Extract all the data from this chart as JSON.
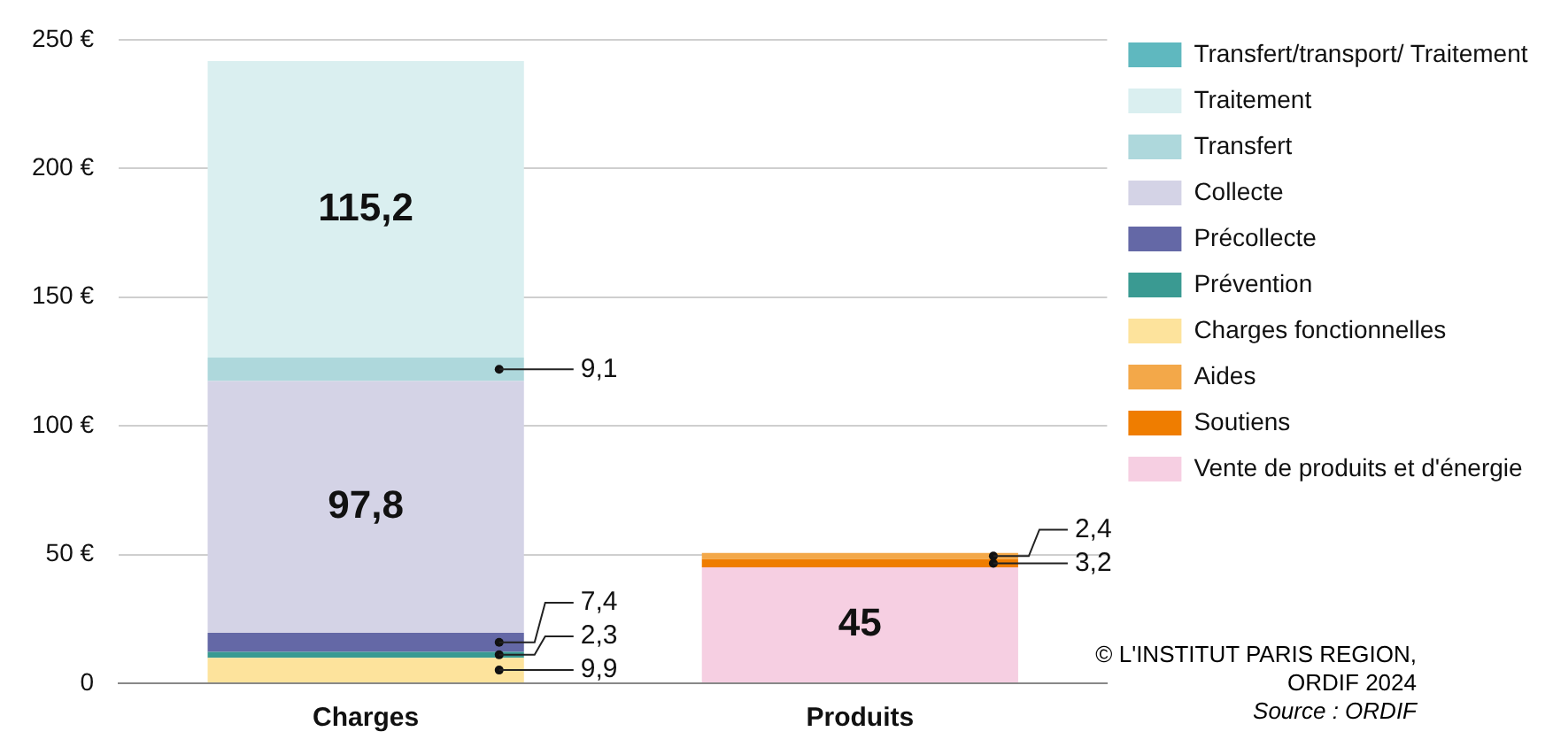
{
  "chart_data": {
    "type": "bar",
    "stacked": true,
    "categories": [
      "Charges",
      "Produits"
    ],
    "ylim": [
      0,
      250
    ],
    "yticks": [
      {
        "value": 0,
        "label": "0"
      },
      {
        "value": 50,
        "label": "50 €"
      },
      {
        "value": 100,
        "label": "100 €"
      },
      {
        "value": 150,
        "label": "150 €"
      },
      {
        "value": 200,
        "label": "200 €"
      },
      {
        "value": 250,
        "label": "250 €"
      }
    ],
    "grid": "y",
    "legend": "right",
    "series": [
      {
        "name": "Vente de produits et d'énergie",
        "color": "#f6cfe2",
        "values": [
          null,
          45
        ],
        "value_labels": [
          null,
          "45"
        ]
      },
      {
        "name": "Soutiens",
        "color": "#ef7d00",
        "values": [
          null,
          3.2
        ],
        "value_labels": [
          null,
          "3,2"
        ]
      },
      {
        "name": "Aides",
        "color": "#f3a849",
        "values": [
          null,
          2.4
        ],
        "value_labels": [
          null,
          "2,4"
        ]
      },
      {
        "name": "Charges fonctionnelles",
        "color": "#fde39c",
        "values": [
          9.9,
          null
        ],
        "value_labels": [
          "9,9",
          null
        ]
      },
      {
        "name": "Prévention",
        "color": "#3a9a92",
        "values": [
          2.3,
          null
        ],
        "value_labels": [
          "2,3",
          null
        ]
      },
      {
        "name": "Précollecte",
        "color": "#6468a6",
        "values": [
          7.4,
          null
        ],
        "value_labels": [
          "7,4",
          null
        ]
      },
      {
        "name": "Collecte",
        "color": "#d4d3e6",
        "values": [
          97.8,
          null
        ],
        "value_labels": [
          "97,8",
          null
        ]
      },
      {
        "name": "Transfert",
        "color": "#aed8dc",
        "values": [
          9.1,
          null
        ],
        "value_labels": [
          "9,1",
          null
        ]
      },
      {
        "name": "Traitement",
        "color": "#daeff0",
        "values": [
          115.2,
          null
        ],
        "value_labels": [
          "115,2",
          null
        ]
      },
      {
        "name": "Transfert/transport/ Traitement",
        "color": "#5fb8bf",
        "values": [
          null,
          null
        ]
      }
    ],
    "annotations": [
      "© L'INSTITUT PARIS REGION, ORDIF 2024",
      "Source : ORDIF"
    ]
  }
}
